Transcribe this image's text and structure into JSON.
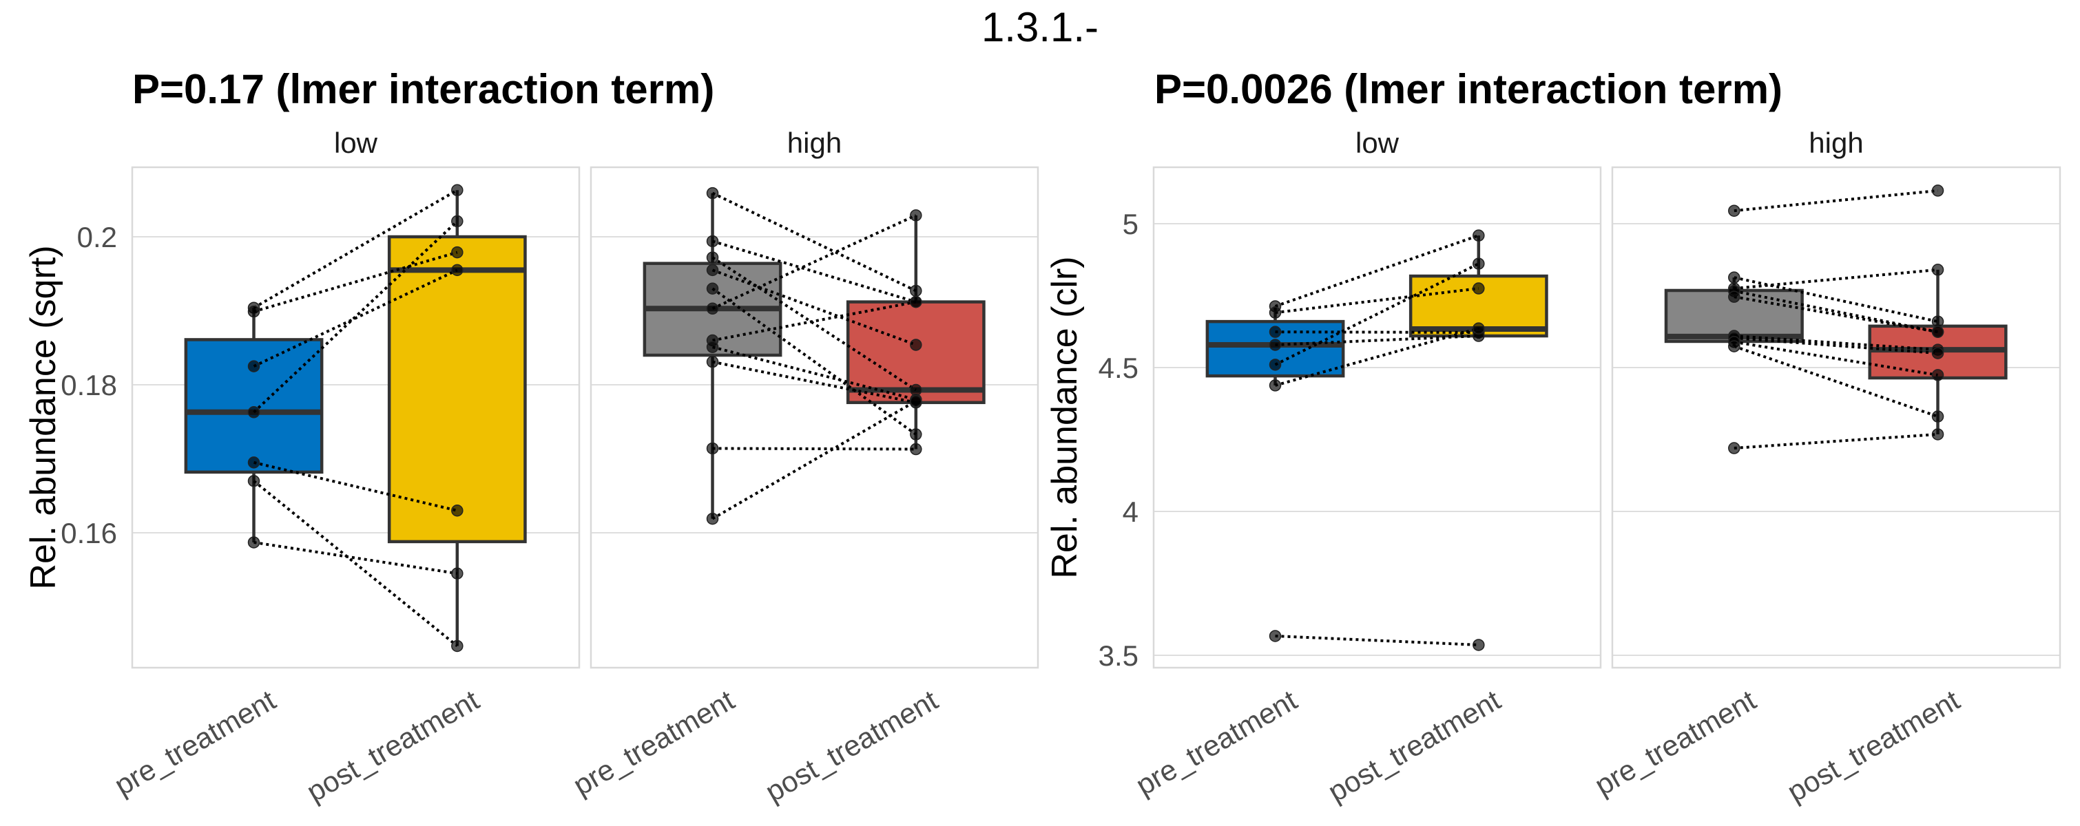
{
  "figure_title": "1.3.1.-",
  "colors": {
    "low_pre": "#0073C2",
    "low_post": "#EFC000",
    "high_pre": "#868686",
    "high_post": "#CD534C"
  },
  "chart_data": [
    {
      "type": "box",
      "title": "P=0.17 (lmer interaction term)",
      "ylabel": "Rel. abundance (sqrt)",
      "xlabel": "",
      "ylim": [
        0.1425,
        0.21
      ],
      "yticks": [
        0.16,
        0.18,
        0.2
      ],
      "ytick_labels": [
        "0.16",
        "0.18",
        "0.2"
      ],
      "grid": true,
      "facets": [
        {
          "label": "low",
          "categories": [
            "pre_treatment",
            "post_treatment"
          ],
          "boxes": [
            {
              "q1": 0.1682,
              "median": 0.1763,
              "q3": 0.1861,
              "whisker_low": 0.1587,
              "whisker_high": 0.1904,
              "points": [
                0.1904,
                0.1899,
                0.1825,
                0.1763,
                0.1695,
                0.167,
                0.1587
              ]
            },
            {
              "q1": 0.1588,
              "median": 0.1955,
              "q3": 0.2,
              "whisker_low": 0.1447,
              "whisker_high": 0.2063,
              "points": [
                0.2063,
                0.1979,
                0.1955,
                0.2021,
                0.163,
                0.1447,
                0.1545
              ]
            }
          ]
        },
        {
          "label": "high",
          "categories": [
            "pre_treatment",
            "post_treatment"
          ],
          "boxes": [
            {
              "q1": 0.184,
              "median": 0.1903,
              "q3": 0.1964,
              "whisker_low": 0.1619,
              "whisker_high": 0.2059,
              "points": [
                0.2059,
                0.1994,
                0.1972,
                0.1955,
                0.193,
                0.1903,
                0.186,
                0.1851,
                0.1831,
                0.1714,
                0.1619
              ]
            },
            {
              "q1": 0.1776,
              "median": 0.1793,
              "q3": 0.1912,
              "whisker_low": 0.1713,
              "whisker_high": 0.2029,
              "points": [
                0.1927,
                0.1912,
                0.1793,
                0.1854,
                0.1733,
                0.2029,
                0.1912,
                0.178,
                0.1776,
                0.1713,
                0.1778
              ]
            }
          ]
        }
      ]
    },
    {
      "type": "box",
      "title": "P=0.0026 (lmer interaction term)",
      "ylabel": "Rel. abundance (clr)",
      "xlabel": "",
      "ylim": [
        3.465,
        5.195
      ],
      "yticks": [
        3.5,
        4,
        4.5,
        5
      ],
      "ytick_labels": [
        "3.5",
        "4",
        "4.5",
        "5"
      ],
      "grid": true,
      "facets": [
        {
          "label": "low",
          "categories": [
            "pre_treatment",
            "post_treatment"
          ],
          "boxes": [
            {
              "q1": 4.471,
              "median": 4.579,
              "q3": 4.66,
              "whisker_low": 4.438,
              "whisker_high": 4.713,
              "points": [
                4.713,
                4.691,
                4.624,
                4.579,
                4.51,
                4.438,
                3.567
              ]
            },
            {
              "q1": 4.61,
              "median": 4.634,
              "q3": 4.818,
              "whisker_low": 4.6,
              "whisker_high": 4.959,
              "points": [
                4.959,
                4.775,
                4.622,
                4.61,
                4.861,
                4.636,
                3.536
              ]
            }
          ]
        },
        {
          "label": "high",
          "categories": [
            "pre_treatment",
            "post_treatment"
          ],
          "boxes": [
            {
              "q1": 4.591,
              "median": 4.608,
              "q3": 4.768,
              "whisker_low": 4.574,
              "whisker_high": 4.813,
              "points": [
                5.045,
                4.813,
                4.775,
                4.766,
                4.746,
                4.61,
                4.603,
                4.589,
                4.574,
                4.22
              ]
            },
            {
              "q1": 4.464,
              "median": 4.562,
              "q3": 4.644,
              "whisker_low": 4.268,
              "whisker_high": 4.84,
              "points": [
                5.115,
                4.66,
                4.84,
                4.624,
                4.624,
                4.562,
                4.55,
                4.474,
                4.33,
                4.268
              ]
            }
          ]
        }
      ]
    }
  ]
}
